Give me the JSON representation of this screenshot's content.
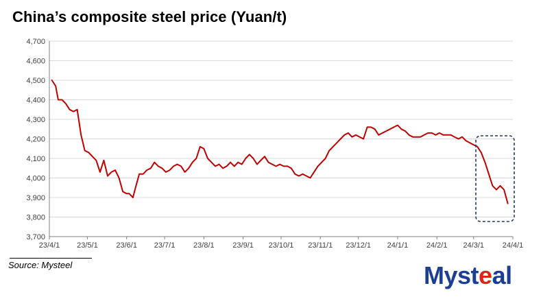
{
  "chart_data": {
    "type": "line",
    "title": "China’s composite steel price (Yuan/t)",
    "ylim": [
      3700,
      4700
    ],
    "yticks": [
      3700,
      3800,
      3900,
      4000,
      4100,
      4200,
      4300,
      4400,
      4500,
      4600,
      4700
    ],
    "ytick_labels": [
      "3,700",
      "3,800",
      "3,900",
      "4,000",
      "4,100",
      "4,200",
      "4,300",
      "4,400",
      "4,500",
      "4,600",
      "4,700"
    ],
    "xlim": [
      "2023-04-01",
      "2024-04-01"
    ],
    "xticks": [
      "2023-04-01",
      "2023-05-01",
      "2023-06-01",
      "2023-07-01",
      "2023-08-01",
      "2023-09-01",
      "2023-10-01",
      "2023-11-01",
      "2023-12-01",
      "2024-01-01",
      "2024-02-01",
      "2024-03-01",
      "2024-04-01"
    ],
    "xtick_labels": [
      "23/4/1",
      "23/5/1",
      "23/6/1",
      "23/7/1",
      "23/8/1",
      "23/9/1",
      "23/10/1",
      "23/11/1",
      "23/12/1",
      "24/1/1",
      "24/2/1",
      "24/3/1",
      "24/4/1"
    ],
    "grid": true,
    "series": [
      {
        "color": "#c00000",
        "x": [
          "2023-04-03",
          "2023-04-06",
          "2023-04-08",
          "2023-04-11",
          "2023-04-14",
          "2023-04-17",
          "2023-04-20",
          "2023-04-23",
          "2023-04-26",
          "2023-04-29",
          "2023-05-02",
          "2023-05-05",
          "2023-05-08",
          "2023-05-11",
          "2023-05-14",
          "2023-05-17",
          "2023-05-20",
          "2023-05-23",
          "2023-05-26",
          "2023-05-29",
          "2023-06-01",
          "2023-06-03",
          "2023-06-06",
          "2023-06-08",
          "2023-06-11",
          "2023-06-14",
          "2023-06-17",
          "2023-06-20",
          "2023-06-23",
          "2023-06-26",
          "2023-06-29",
          "2023-07-02",
          "2023-07-05",
          "2023-07-08",
          "2023-07-11",
          "2023-07-14",
          "2023-07-17",
          "2023-07-20",
          "2023-07-23",
          "2023-07-26",
          "2023-07-29",
          "2023-08-01",
          "2023-08-04",
          "2023-08-07",
          "2023-08-10",
          "2023-08-13",
          "2023-08-16",
          "2023-08-19",
          "2023-08-22",
          "2023-08-25",
          "2023-08-28",
          "2023-08-31",
          "2023-09-03",
          "2023-09-06",
          "2023-09-09",
          "2023-09-12",
          "2023-09-15",
          "2023-09-18",
          "2023-09-21",
          "2023-09-24",
          "2023-09-27",
          "2023-09-30",
          "2023-10-03",
          "2023-10-06",
          "2023-10-09",
          "2023-10-12",
          "2023-10-15",
          "2023-10-18",
          "2023-10-21",
          "2023-10-24",
          "2023-10-27",
          "2023-10-30",
          "2023-11-02",
          "2023-11-05",
          "2023-11-08",
          "2023-11-11",
          "2023-11-14",
          "2023-11-17",
          "2023-11-20",
          "2023-11-23",
          "2023-11-26",
          "2023-11-29",
          "2023-12-02",
          "2023-12-05",
          "2023-12-08",
          "2023-12-11",
          "2023-12-14",
          "2023-12-17",
          "2023-12-20",
          "2023-12-23",
          "2023-12-26",
          "2023-12-29",
          "2024-01-01",
          "2024-01-04",
          "2024-01-07",
          "2024-01-10",
          "2024-01-13",
          "2024-01-16",
          "2024-01-19",
          "2024-01-22",
          "2024-01-25",
          "2024-01-28",
          "2024-01-31",
          "2024-02-03",
          "2024-02-06",
          "2024-02-09",
          "2024-02-12",
          "2024-02-15",
          "2024-02-18",
          "2024-02-21",
          "2024-02-24",
          "2024-02-27",
          "2024-03-01",
          "2024-03-04",
          "2024-03-07",
          "2024-03-10",
          "2024-03-13",
          "2024-03-16",
          "2024-03-19",
          "2024-03-22",
          "2024-03-25",
          "2024-03-28"
        ],
        "y": [
          4500,
          4470,
          4400,
          4400,
          4380,
          4350,
          4340,
          4350,
          4220,
          4140,
          4130,
          4110,
          4090,
          4030,
          4090,
          4010,
          4030,
          4040,
          4000,
          3930,
          3920,
          3920,
          3900,
          3950,
          4020,
          4020,
          4040,
          4050,
          4080,
          4060,
          4050,
          4030,
          4040,
          4060,
          4070,
          4060,
          4030,
          4050,
          4080,
          4100,
          4160,
          4150,
          4100,
          4080,
          4060,
          4070,
          4050,
          4060,
          4080,
          4060,
          4080,
          4070,
          4100,
          4120,
          4100,
          4070,
          4090,
          4110,
          4080,
          4070,
          4060,
          4070,
          4060,
          4060,
          4050,
          4020,
          4010,
          4020,
          4010,
          4000,
          4030,
          4060,
          4080,
          4100,
          4140,
          4160,
          4180,
          4200,
          4220,
          4230,
          4210,
          4220,
          4210,
          4200,
          4260,
          4260,
          4250,
          4220,
          4230,
          4240,
          4250,
          4260,
          4270,
          4250,
          4240,
          4220,
          4210,
          4210,
          4210,
          4220,
          4230,
          4230,
          4220,
          4230,
          4220,
          4220,
          4220,
          4210,
          4200,
          4210,
          4190,
          4180,
          4170,
          4160,
          4130,
          4080,
          4020,
          3960,
          3940,
          3960,
          3940,
          3870
        ]
      }
    ]
  },
  "source_text": "Source: Mysteel",
  "logo": {
    "main": "Myst",
    "accent": "e",
    "end": "al"
  }
}
